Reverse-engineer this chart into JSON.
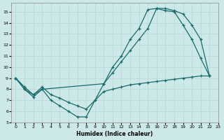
{
  "xlabel": "Humidex (Indice chaleur)",
  "bg_color": "#cce8e8",
  "grid_color": "#b8d8d8",
  "line_color": "#1a6b6b",
  "xlim": [
    -0.5,
    23
  ],
  "ylim": [
    5,
    15.8
  ],
  "xticks": [
    0,
    1,
    2,
    3,
    4,
    5,
    6,
    7,
    8,
    9,
    10,
    11,
    12,
    13,
    14,
    15,
    16,
    17,
    18,
    19,
    20,
    21,
    22,
    23
  ],
  "yticks": [
    5,
    6,
    7,
    8,
    9,
    10,
    11,
    12,
    13,
    14,
    15
  ],
  "line1_x": [
    0,
    1,
    2,
    3,
    10,
    11,
    12,
    13,
    14,
    15,
    16,
    17,
    18,
    19,
    20,
    21,
    22
  ],
  "line1_y": [
    9,
    8,
    7.5,
    8,
    8.5,
    9.5,
    10.5,
    11.5,
    12.5,
    13.5,
    15.3,
    15.3,
    15.1,
    14.8,
    13.8,
    12.5,
    9.2
  ],
  "line2_x": [
    0,
    1,
    2,
    3,
    4,
    5,
    6,
    7,
    8,
    9,
    10,
    11,
    12,
    13,
    14,
    15,
    16,
    17,
    18,
    19,
    20,
    21,
    22
  ],
  "line2_y": [
    9,
    8,
    7.3,
    8,
    7,
    6.5,
    6,
    5.5,
    5.5,
    7,
    8.5,
    10,
    11,
    12.5,
    13.5,
    15.2,
    15.3,
    15.1,
    15.0,
    13.8,
    12.5,
    10.8,
    9.2
  ],
  "line3_x": [
    0,
    1,
    2,
    3,
    4,
    5,
    6,
    7,
    8,
    9,
    10,
    11,
    12,
    13,
    14,
    15,
    16,
    17,
    18,
    19,
    20,
    21,
    22
  ],
  "line3_y": [
    9,
    8.2,
    7.5,
    8.2,
    7.5,
    7.2,
    6.8,
    6.5,
    6.2,
    7,
    7.8,
    8.0,
    8.2,
    8.4,
    8.5,
    8.6,
    8.7,
    8.8,
    8.9,
    9.0,
    9.1,
    9.2,
    9.2
  ]
}
